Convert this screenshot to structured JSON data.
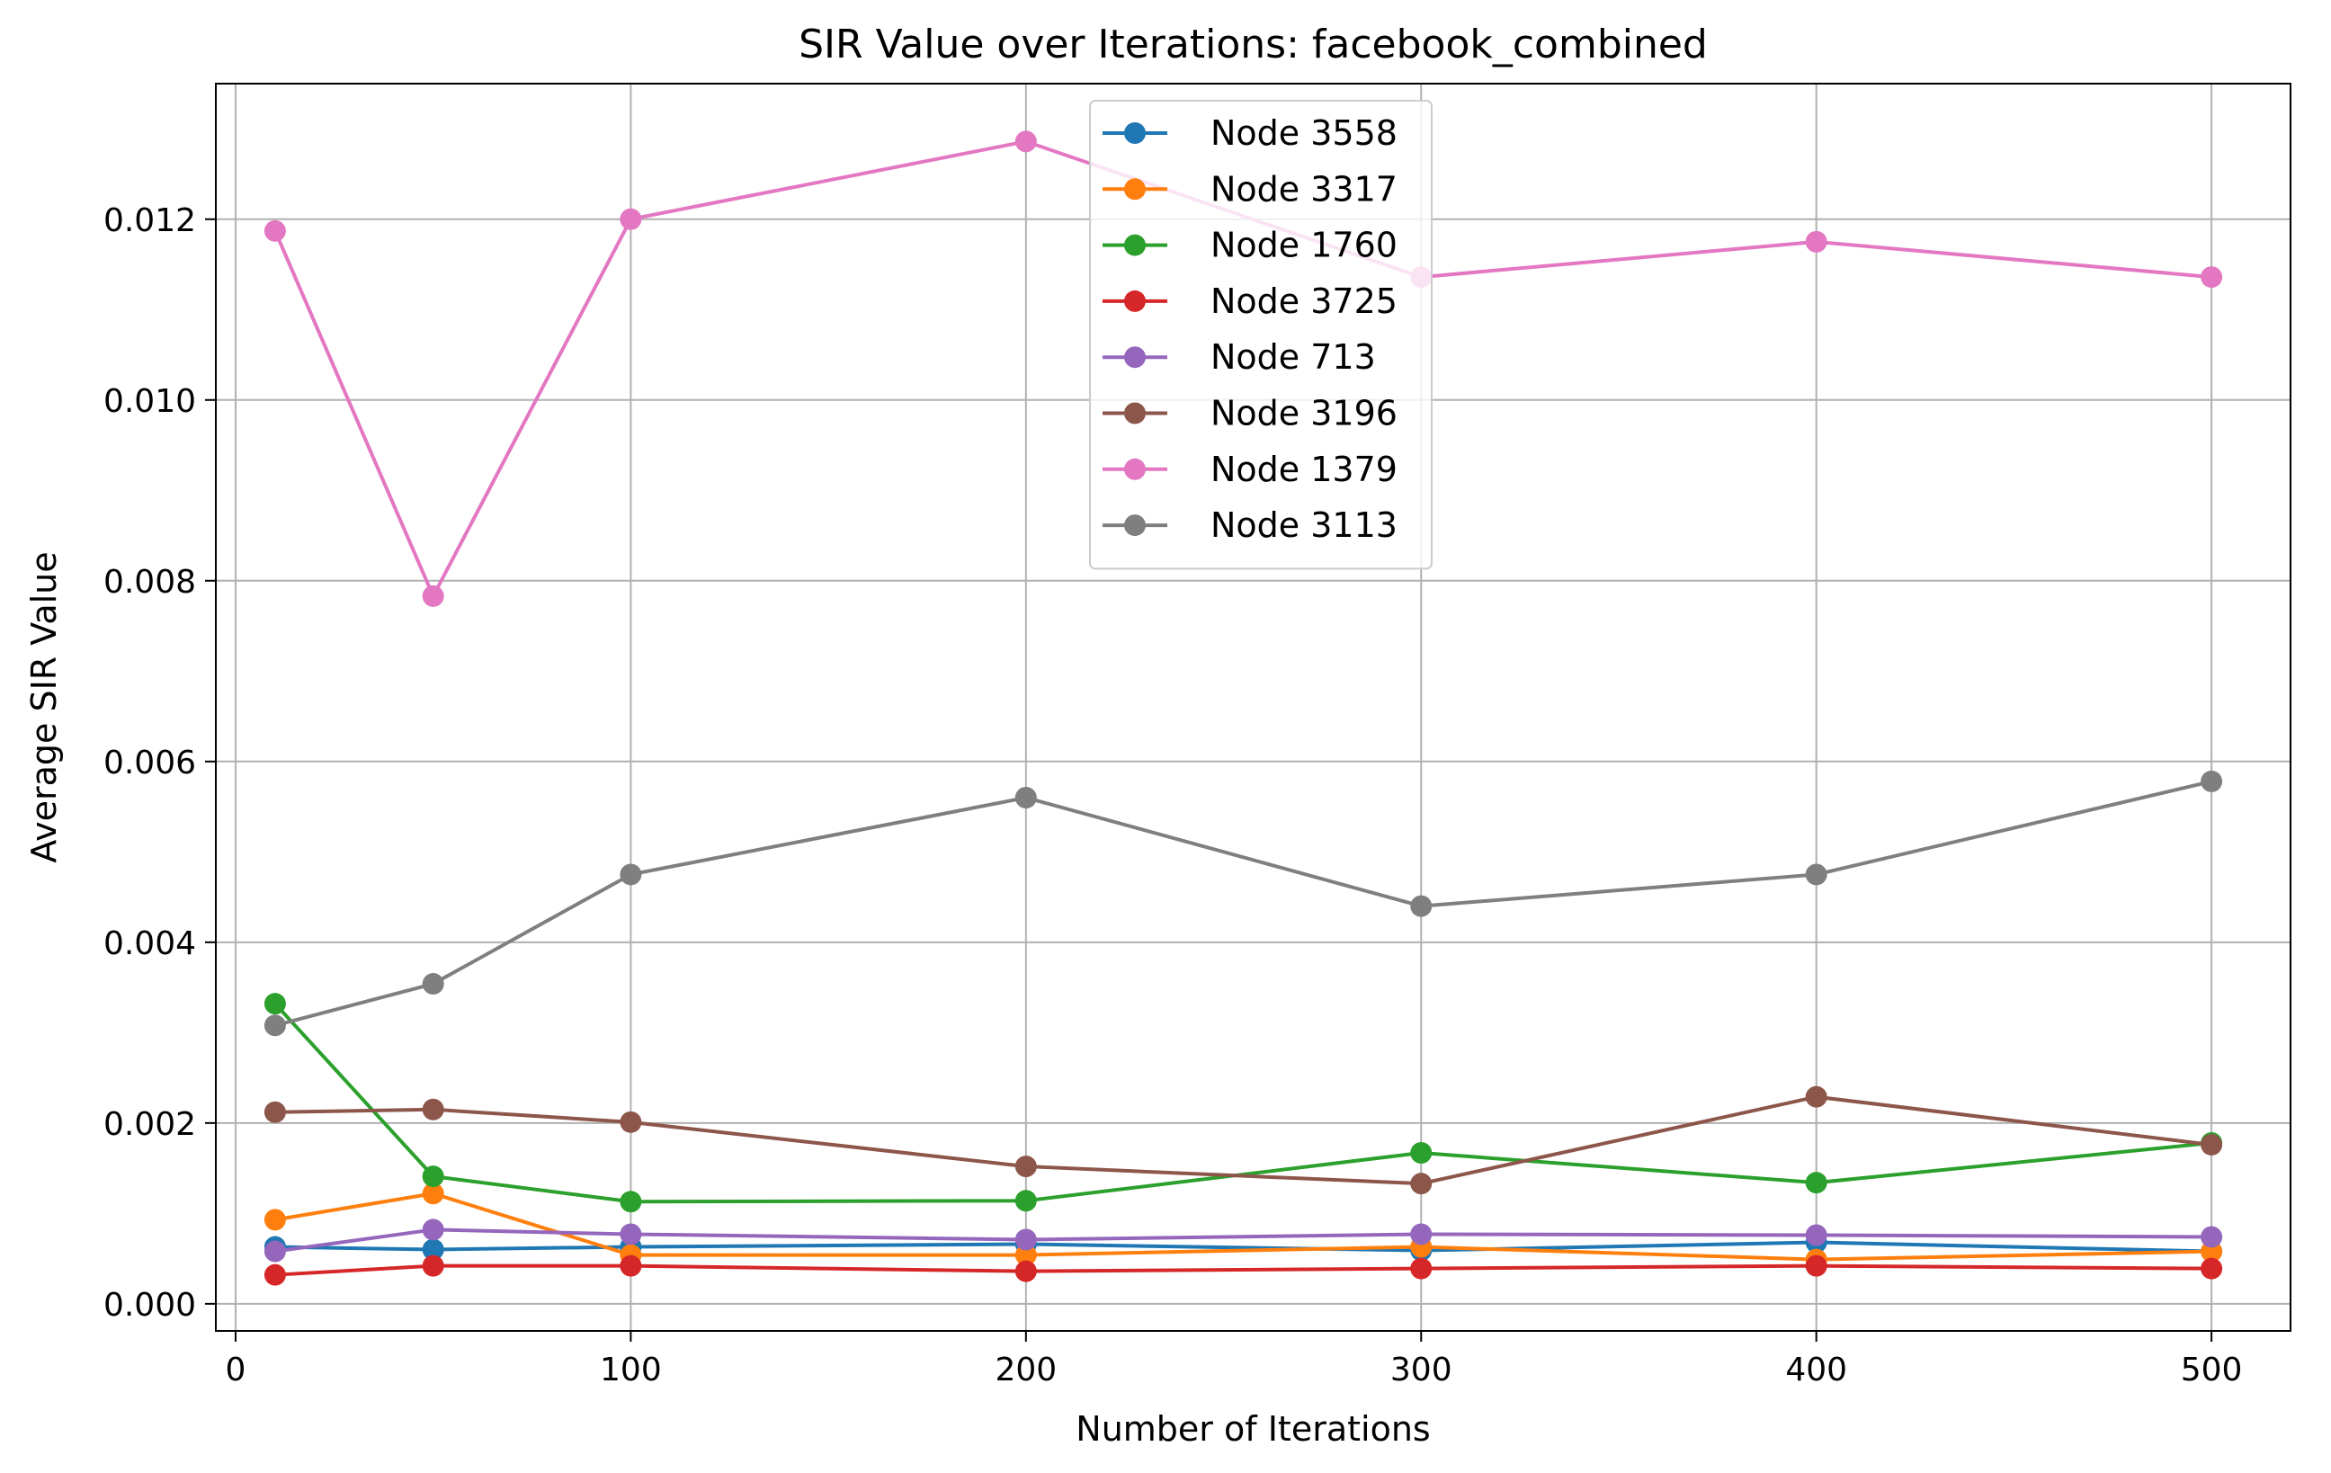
{
  "chart_data": {
    "type": "line",
    "title": "SIR Value over Iterations: facebook_combined",
    "xlabel": "Number of Iterations",
    "ylabel": "Average SIR Value",
    "x": [
      10,
      50,
      100,
      200,
      300,
      400,
      500
    ],
    "xlim": [
      -5,
      520
    ],
    "ylim": [
      -0.0003,
      0.0135
    ],
    "xticks": [
      0,
      100,
      200,
      300,
      400,
      500
    ],
    "xtick_labels": [
      "0",
      "100",
      "200",
      "300",
      "400",
      "500"
    ],
    "yticks": [
      0,
      0.002,
      0.004,
      0.006,
      0.008,
      0.01,
      0.012
    ],
    "ytick_labels": [
      "0.000",
      "0.002",
      "0.004",
      "0.006",
      "0.008",
      "0.010",
      "0.012"
    ],
    "grid": true,
    "legend_position": "top-center",
    "series": [
      {
        "name": "Node 3558",
        "color": "#1f77b4",
        "values": [
          0.00063,
          0.0006,
          0.00063,
          0.00066,
          0.00059,
          0.00068,
          0.00058
        ]
      },
      {
        "name": "Node 3317",
        "color": "#ff7f0e",
        "values": [
          0.00093,
          0.00122,
          0.00054,
          0.00054,
          0.00063,
          0.00049,
          0.00058
        ]
      },
      {
        "name": "Node 1760",
        "color": "#2ca02c",
        "values": [
          0.00332,
          0.00141,
          0.00113,
          0.00114,
          0.00167,
          0.00134,
          0.00178
        ]
      },
      {
        "name": "Node 3725",
        "color": "#d62728",
        "values": [
          0.00032,
          0.00042,
          0.00042,
          0.00036,
          0.00039,
          0.00042,
          0.00039
        ]
      },
      {
        "name": "Node 713",
        "color": "#9467bd",
        "values": [
          0.00058,
          0.00082,
          0.00077,
          0.00071,
          0.00077,
          0.00076,
          0.00074
        ]
      },
      {
        "name": "Node 3196",
        "color": "#8c564b",
        "values": [
          0.00212,
          0.00215,
          0.00201,
          0.00152,
          0.00133,
          0.00229,
          0.00176
        ]
      },
      {
        "name": "Node 1379",
        "color": "#e377c2",
        "values": [
          0.01187,
          0.00783,
          0.012,
          0.01286,
          0.01136,
          0.01175,
          0.01136
        ]
      },
      {
        "name": "Node 3113",
        "color": "#7f7f7f",
        "values": [
          0.00308,
          0.00354,
          0.00475,
          0.0056,
          0.0044,
          0.00475,
          0.00578
        ]
      }
    ]
  }
}
